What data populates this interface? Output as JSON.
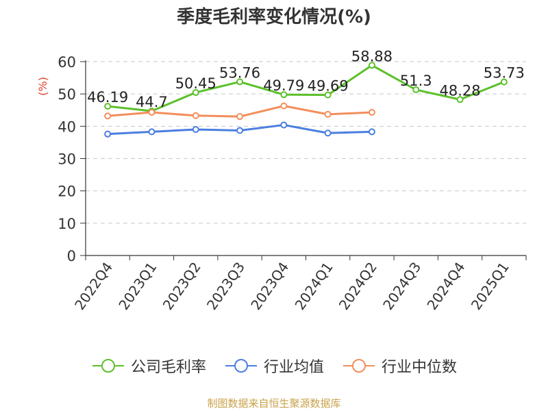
{
  "chart_data": {
    "type": "line",
    "title": "季度毛利率变化情况(%)",
    "ylabel": "(%)",
    "ylim": [
      0,
      60
    ],
    "yticks": [
      0,
      10,
      20,
      30,
      40,
      50,
      60
    ],
    "grid": true,
    "legend_position": "bottom",
    "categories": [
      "2022Q4",
      "2023Q1",
      "2023Q2",
      "2023Q3",
      "2023Q4",
      "2024Q1",
      "2024Q2",
      "2024Q3",
      "2024Q4",
      "2025Q1"
    ],
    "series": [
      {
        "name": "公司毛利率",
        "color": "#5cc02a",
        "labeled": true,
        "values": [
          46.19,
          44.7,
          50.45,
          53.76,
          49.79,
          49.69,
          58.88,
          51.3,
          48.28,
          53.73
        ],
        "labels": [
          "46.19",
          "44.7",
          "50.45",
          "53.76",
          "49.79",
          "49.69",
          "58.88",
          "51.3",
          "48.28",
          "53.73"
        ]
      },
      {
        "name": "行业均值",
        "color": "#4a7ee0",
        "labeled": false,
        "values": [
          37.6,
          38.3,
          39.0,
          38.7,
          40.4,
          37.9,
          38.3,
          null,
          null,
          null
        ]
      },
      {
        "name": "行业中位数",
        "color": "#f28e5c",
        "labeled": false,
        "values": [
          43.2,
          44.3,
          43.3,
          43.0,
          46.3,
          43.7,
          44.3,
          null,
          null,
          null
        ]
      }
    ]
  },
  "footer": {
    "source": "制图数据来自恒生聚源数据库"
  }
}
